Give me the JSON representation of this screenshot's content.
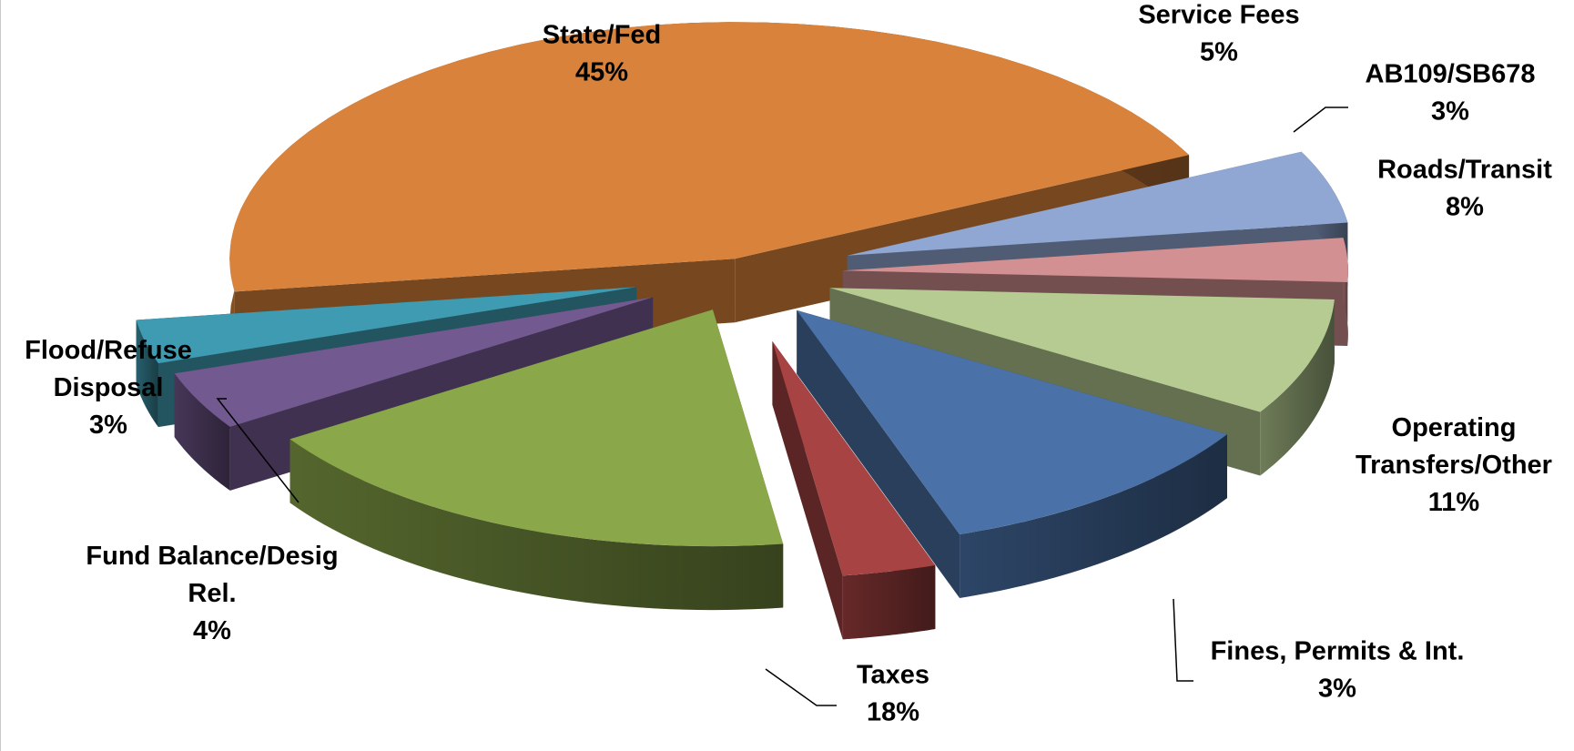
{
  "chart_data": {
    "type": "pie",
    "style": "3d-exploded",
    "slices": [
      {
        "name": "State/Fed",
        "label_lines": [
          "State/Fed"
        ],
        "value": 45,
        "pct_label": "45%",
        "color": "#D9823B"
      },
      {
        "name": "Service Fees",
        "label_lines": [
          "Service Fees"
        ],
        "value": 5,
        "pct_label": "5%",
        "color": "#8FA7D2"
      },
      {
        "name": "AB109/SB678",
        "label_lines": [
          "AB109/SB678"
        ],
        "value": 3,
        "pct_label": "3%",
        "color": "#D39092"
      },
      {
        "name": "Roads/Transit",
        "label_lines": [
          "Roads/Transit"
        ],
        "value": 8,
        "pct_label": "8%",
        "color": "#B5CB91"
      },
      {
        "name": "Operating Transfers/Other",
        "label_lines": [
          "Operating",
          "Transfers/Other"
        ],
        "value": 11,
        "pct_label": "11%",
        "color": "#4A72A8"
      },
      {
        "name": "Fines, Permits & Int.",
        "label_lines": [
          "Fines, Permits & Int."
        ],
        "value": 3,
        "pct_label": "3%",
        "color": "#A84343"
      },
      {
        "name": "Taxes",
        "label_lines": [
          "Taxes"
        ],
        "value": 18,
        "pct_label": "18%",
        "color": "#8AA74A"
      },
      {
        "name": "Fund Balance/Desig Rel.",
        "label_lines": [
          "Fund Balance/Desig",
          "Rel."
        ],
        "value": 4,
        "pct_label": "4%",
        "color": "#72598F"
      },
      {
        "name": "Flood/Refuse Disposal",
        "label_lines": [
          "Flood/Refuse",
          "Disposal"
        ],
        "value": 3,
        "pct_label": "3%",
        "color": "#3F9BB1"
      }
    ],
    "legend": "none",
    "data_labels": "outside"
  }
}
